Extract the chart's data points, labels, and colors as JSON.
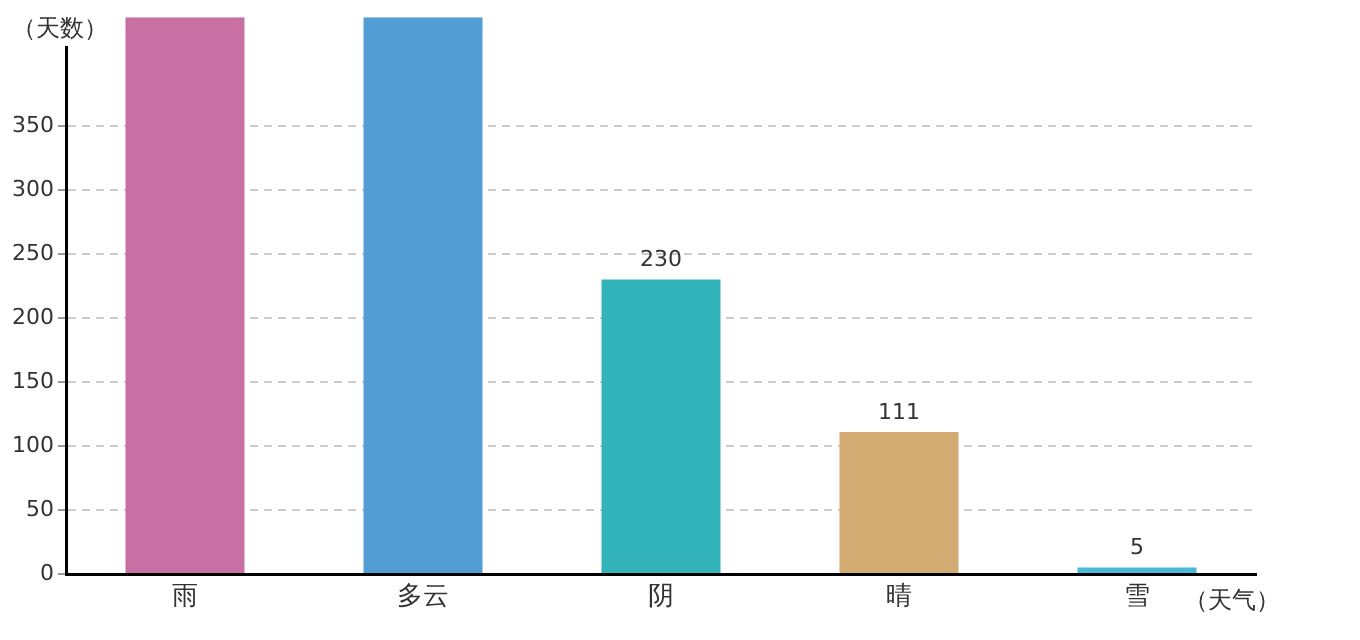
{
  "chart_data": {
    "type": "bar",
    "xlabel": "（天气）",
    "ylabel": "（天数）",
    "categories": [
      "雨",
      "多云",
      "阴",
      "晴",
      "雪"
    ],
    "values": [
      435,
      435,
      230,
      111,
      5
    ],
    "colors": [
      "#c86fa3",
      "#539dd5",
      "#33b4bb",
      "#d2ab73",
      "#4cb9d9"
    ],
    "value_labels": [
      null,
      null,
      "230",
      "111",
      "5"
    ],
    "ylim": [
      0,
      435
    ],
    "yticks": [
      0,
      50,
      100,
      150,
      200,
      250,
      300,
      350
    ],
    "grid": "y",
    "legend": false
  }
}
